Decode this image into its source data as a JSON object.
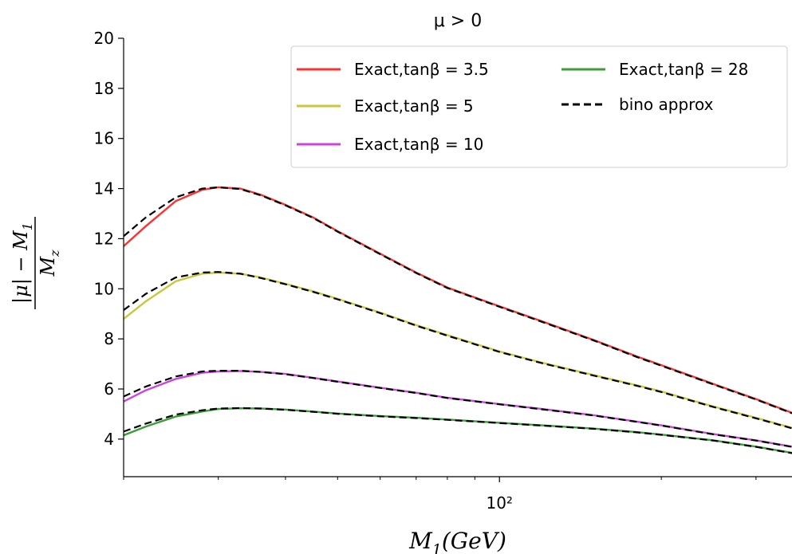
{
  "chart_data": {
    "type": "line",
    "title": "μ > 0",
    "xlabel": "M_1(GeV)",
    "ylabel": "(|μ| − M_1) / M_z",
    "x_scale": "log",
    "x_tick_labels": [
      "10²"
    ],
    "y_ticks": [
      4,
      6,
      8,
      10,
      12,
      14,
      16,
      18,
      20
    ],
    "ylim": [
      2.5,
      20
    ],
    "xlim": [
      20,
      350
    ],
    "grid": false,
    "legend_position": "top-right",
    "series": [
      {
        "name": "Exact,tanβ = 3.5",
        "color": "#ff3030",
        "style": "solid",
        "x": [
          20,
          22,
          25,
          28,
          30,
          33,
          36,
          40,
          45,
          50,
          60,
          70,
          80,
          100,
          120,
          150,
          180,
          200,
          250,
          300,
          350
        ],
        "y": [
          11.7,
          12.5,
          13.5,
          13.95,
          14.05,
          14.0,
          13.75,
          13.35,
          12.85,
          12.3,
          11.4,
          10.65,
          10.05,
          9.3,
          8.7,
          7.95,
          7.3,
          6.95,
          6.2,
          5.6,
          5.05
        ]
      },
      {
        "name": "Exact,tanβ = 5",
        "color": "#c8c83a",
        "style": "solid",
        "x": [
          20,
          22,
          25,
          28,
          30,
          33,
          36,
          40,
          45,
          50,
          60,
          70,
          80,
          100,
          120,
          150,
          180,
          200,
          250,
          300,
          350
        ],
        "y": [
          8.8,
          9.5,
          10.3,
          10.6,
          10.65,
          10.6,
          10.45,
          10.2,
          9.9,
          9.6,
          9.05,
          8.55,
          8.15,
          7.5,
          7.05,
          6.55,
          6.15,
          5.9,
          5.3,
          4.85,
          4.45
        ]
      },
      {
        "name": "Exact,tanβ = 10",
        "color": "#cc44dd",
        "style": "solid",
        "x": [
          20,
          22,
          25,
          28,
          30,
          33,
          36,
          40,
          45,
          50,
          60,
          70,
          80,
          100,
          120,
          150,
          180,
          200,
          250,
          300,
          350
        ],
        "y": [
          5.5,
          5.95,
          6.4,
          6.65,
          6.7,
          6.72,
          6.68,
          6.6,
          6.45,
          6.3,
          6.05,
          5.85,
          5.65,
          5.4,
          5.2,
          4.95,
          4.7,
          4.55,
          4.2,
          3.95,
          3.7
        ]
      },
      {
        "name": "Exact,tanβ = 28",
        "color": "#3a9e3a",
        "style": "solid",
        "x": [
          20,
          22,
          25,
          28,
          30,
          33,
          36,
          40,
          45,
          50,
          60,
          70,
          80,
          100,
          120,
          150,
          180,
          200,
          250,
          300,
          350
        ],
        "y": [
          4.15,
          4.5,
          4.9,
          5.1,
          5.2,
          5.23,
          5.22,
          5.18,
          5.1,
          5.02,
          4.92,
          4.85,
          4.78,
          4.65,
          4.55,
          4.42,
          4.28,
          4.18,
          3.95,
          3.7,
          3.45
        ]
      },
      {
        "name": "bino approx",
        "color": "#000000",
        "style": "dashed",
        "lines": [
          {
            "x": [
              20,
              22,
              25,
              28,
              30,
              33,
              36,
              40,
              45,
              50,
              60,
              70,
              80,
              100,
              120,
              150,
              180,
              200,
              250,
              300,
              350
            ],
            "y": [
              12.1,
              12.85,
              13.65,
              14.0,
              14.05,
              13.98,
              13.73,
              13.33,
              12.83,
              12.28,
              11.38,
              10.63,
              10.03,
              9.28,
              8.68,
              7.93,
              7.28,
              6.93,
              6.18,
              5.58,
              5.03
            ]
          },
          {
            "x": [
              20,
              22,
              25,
              28,
              30,
              33,
              36,
              40,
              45,
              50,
              60,
              70,
              80,
              100,
              120,
              150,
              180,
              200,
              250,
              300,
              350
            ],
            "y": [
              9.15,
              9.8,
              10.45,
              10.65,
              10.67,
              10.6,
              10.43,
              10.18,
              9.88,
              9.58,
              9.03,
              8.53,
              8.13,
              7.48,
              7.03,
              6.53,
              6.13,
              5.88,
              5.28,
              4.83,
              4.43
            ]
          },
          {
            "x": [
              20,
              22,
              25,
              28,
              30,
              33,
              36,
              40,
              45,
              50,
              60,
              70,
              80,
              100,
              120,
              150,
              180,
              200,
              250,
              300,
              350
            ],
            "y": [
              5.7,
              6.1,
              6.5,
              6.7,
              6.73,
              6.73,
              6.68,
              6.59,
              6.44,
              6.29,
              6.04,
              5.84,
              5.64,
              5.39,
              5.19,
              4.94,
              4.69,
              4.54,
              4.19,
              3.94,
              3.69
            ]
          },
          {
            "x": [
              20,
              22,
              25,
              28,
              30,
              33,
              36,
              40,
              45,
              50,
              60,
              70,
              80,
              100,
              120,
              150,
              180,
              200,
              250,
              300,
              350
            ],
            "y": [
              4.3,
              4.62,
              4.98,
              5.15,
              5.22,
              5.24,
              5.22,
              5.17,
              5.09,
              5.01,
              4.91,
              4.84,
              4.77,
              4.64,
              4.54,
              4.41,
              4.27,
              4.17,
              3.94,
              3.69,
              3.44
            ]
          }
        ]
      }
    ]
  }
}
